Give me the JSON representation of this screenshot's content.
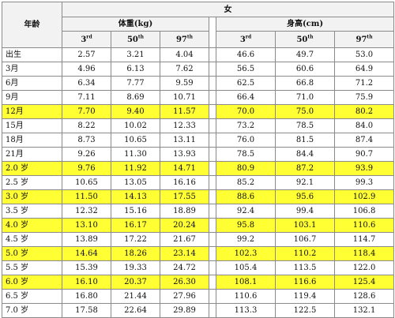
{
  "table": {
    "age_header": "年龄",
    "gender_header": "女",
    "weight_header": "体重(kg)",
    "height_header": "身高(cm)",
    "percentiles": [
      {
        "num": "3",
        "sup": "rd"
      },
      {
        "num": "50",
        "sup": "th"
      },
      {
        "num": "97",
        "sup": "th"
      }
    ],
    "highlight_color": "#ffff33",
    "rows": [
      {
        "age": "出生",
        "w3": "2.57",
        "w50": "3.21",
        "w97": "4.04",
        "h3": "46.6",
        "h50": "49.7",
        "h97": "53.0",
        "highlight": false
      },
      {
        "age": "3月",
        "w3": "4.96",
        "w50": "6.13",
        "w97": "7.62",
        "h3": "56.5",
        "h50": "60.6",
        "h97": "64.9",
        "highlight": false
      },
      {
        "age": "6月",
        "w3": "6.34",
        "w50": "7.77",
        "w97": "9.59",
        "h3": "62.5",
        "h50": "66.8",
        "h97": "71.2",
        "highlight": false
      },
      {
        "age": "9月",
        "w3": "7.11",
        "w50": "8.69",
        "w97": "10.71",
        "h3": "66.4",
        "h50": "71.0",
        "h97": "75.9",
        "highlight": false
      },
      {
        "age": "12月",
        "w3": "7.70",
        "w50": "9.40",
        "w97": "11.57",
        "h3": "70.0",
        "h50": "75.0",
        "h97": "80.2",
        "highlight": true
      },
      {
        "age": "15月",
        "w3": "8.22",
        "w50": "10.02",
        "w97": "12.33",
        "h3": "73.2",
        "h50": "78.5",
        "h97": "84.0",
        "highlight": false
      },
      {
        "age": "18月",
        "w3": "8.73",
        "w50": "10.65",
        "w97": "13.11",
        "h3": "76.0",
        "h50": "81.5",
        "h97": "87.4",
        "highlight": false
      },
      {
        "age": "21月",
        "w3": "9.26",
        "w50": "11.30",
        "w97": "13.93",
        "h3": "78.5",
        "h50": "84.4",
        "h97": "90.7",
        "highlight": false
      },
      {
        "age": "2.0 岁",
        "w3": "9.76",
        "w50": "11.92",
        "w97": "14.71",
        "h3": "80.9",
        "h50": "87.2",
        "h97": "93.9",
        "highlight": true
      },
      {
        "age": "2.5 岁",
        "w3": "10.65",
        "w50": "13.05",
        "w97": "16.16",
        "h3": "85.2",
        "h50": "92.1",
        "h97": "99.3",
        "highlight": false
      },
      {
        "age": "3.0 岁",
        "w3": "11.50",
        "w50": "14.13",
        "w97": "17.55",
        "h3": "88.6",
        "h50": "95.6",
        "h97": "102.9",
        "highlight": true
      },
      {
        "age": "3.5 岁",
        "w3": "12.32",
        "w50": "15.16",
        "w97": "18.89",
        "h3": "92.4",
        "h50": "99.4",
        "h97": "106.8",
        "highlight": false
      },
      {
        "age": "4.0 岁",
        "w3": "13.10",
        "w50": "16.17",
        "w97": "20.24",
        "h3": "95.8",
        "h50": "103.1",
        "h97": "110.6",
        "highlight": true
      },
      {
        "age": "4.5 岁",
        "w3": "13.89",
        "w50": "17.22",
        "w97": "21.67",
        "h3": "99.2",
        "h50": "106.7",
        "h97": "114.7",
        "highlight": false
      },
      {
        "age": "5.0 岁",
        "w3": "14.64",
        "w50": "18.26",
        "w97": "23.14",
        "h3": "102.3",
        "h50": "110.2",
        "h97": "118.4",
        "highlight": true
      },
      {
        "age": "5.5 岁",
        "w3": "15.39",
        "w50": "19.33",
        "w97": "24.72",
        "h3": "105.4",
        "h50": "113.5",
        "h97": "122.0",
        "highlight": false
      },
      {
        "age": "6.0 岁",
        "w3": "16.10",
        "w50": "20.37",
        "w97": "26.30",
        "h3": "108.1",
        "h50": "116.6",
        "h97": "125.4",
        "highlight": true
      },
      {
        "age": "6.5 岁",
        "w3": "16.80",
        "w50": "21.44",
        "w97": "27.96",
        "h3": "110.6",
        "h50": "119.4",
        "h97": "128.6",
        "highlight": false
      },
      {
        "age": "7.0 岁",
        "w3": "17.58",
        "w50": "22.64",
        "w97": "29.89",
        "h3": "113.3",
        "h50": "122.5",
        "h97": "132.1",
        "highlight": false
      }
    ]
  }
}
